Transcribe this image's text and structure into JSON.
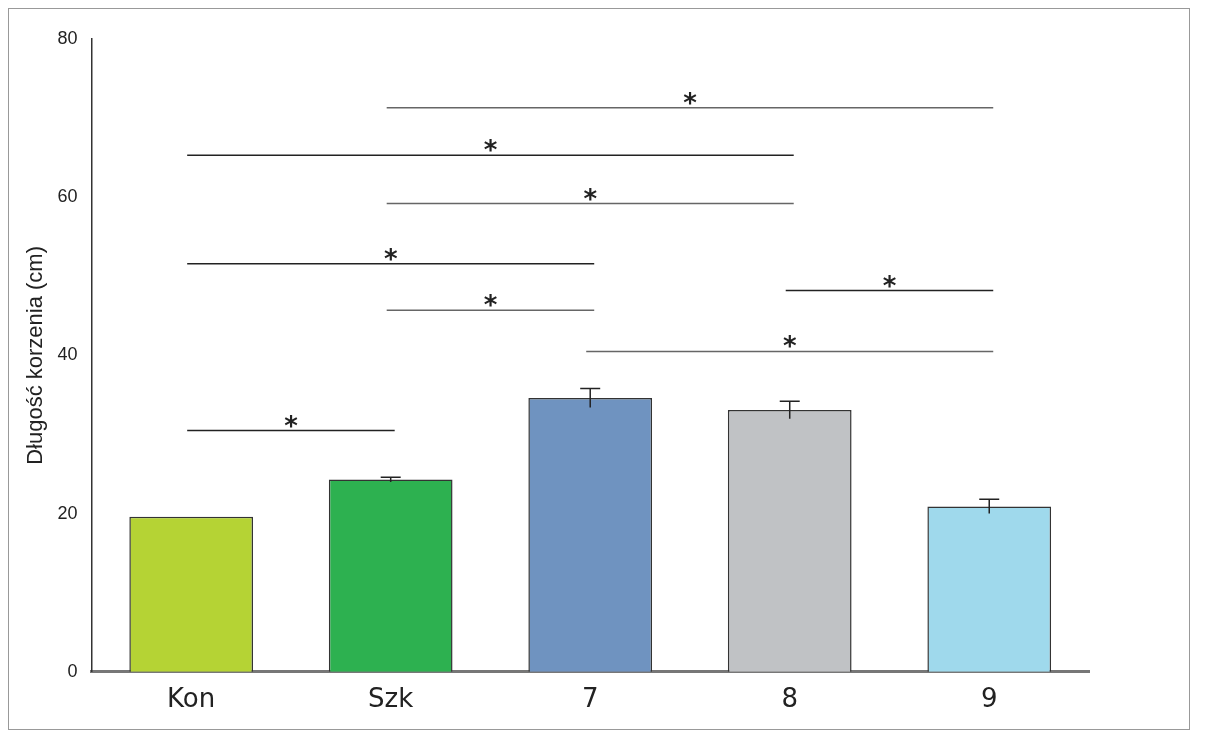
{
  "chart_data": {
    "type": "bar",
    "ylabel": "Długość korzenia (cm)",
    "categories": [
      "Kon",
      "Szk",
      "7",
      "8",
      "9"
    ],
    "values": [
      19.6,
      24.3,
      34.6,
      33.1,
      20.9
    ],
    "colors": [
      "#b5d334",
      "#2db150",
      "#6f93c0",
      "#c0c2c5",
      "#9fd9ec"
    ],
    "errors": [
      null,
      0.3,
      1.2,
      1.1,
      0.9
    ],
    "ylim": [
      0,
      80
    ],
    "yticks": [
      0,
      20,
      40,
      60,
      80
    ],
    "grid": false,
    "legend": false,
    "annotations": [
      "*",
      "*",
      "*",
      "*",
      "*",
      "*",
      "*",
      "*"
    ]
  }
}
